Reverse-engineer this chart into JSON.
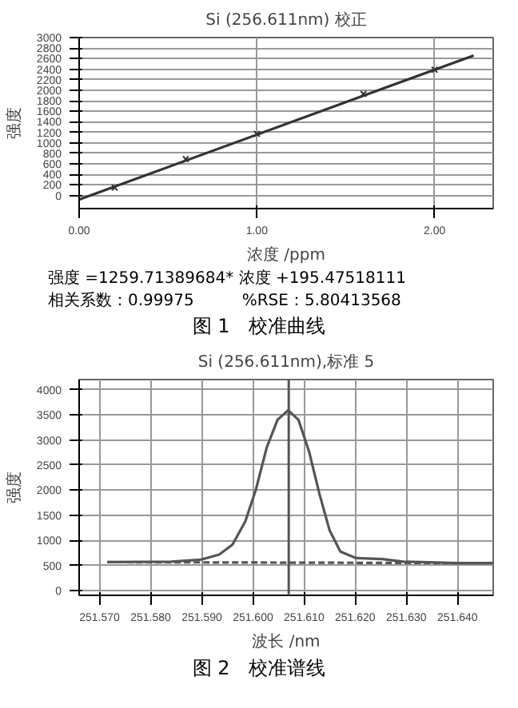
{
  "chart_data": [
    {
      "type": "scatter",
      "title": "Si (256.611nm) 校正",
      "xlabel": "浓度 /ppm",
      "ylabel": "强度",
      "xlim": [
        0,
        2.33
      ],
      "xticks": [
        {
          "value": 0,
          "label": "0.00"
        },
        {
          "value": 1,
          "label": "1.00"
        },
        {
          "value": 2,
          "label": "2.00"
        }
      ],
      "ylim": [
        -250,
        3000
      ],
      "yticks": [
        0,
        200,
        400,
        600,
        800,
        1000,
        1200,
        1400,
        1600,
        1800,
        2000,
        2200,
        2400,
        2600,
        2800,
        3000
      ],
      "grid": true,
      "series": [
        {
          "marker": "cross",
          "color": "#333333",
          "x": [
            0.2,
            0.6,
            1.0,
            1.6,
            2.0
          ],
          "values": [
            150,
            690,
            1170,
            1930,
            2390
          ]
        },
        {
          "type": "line",
          "color": "#333333",
          "x": [
            0,
            2.22
          ],
          "values": [
            -80,
            2660
          ]
        }
      ],
      "annotations": [
        "强度 =1259.71389684* 浓度 +195.47518111",
        "相关系数：0.99975　　　%RSE：5.80413568",
        "图 1　校准曲线"
      ]
    },
    {
      "type": "line",
      "title": "Si (256.611nm),标准 5",
      "xlabel": "波长 /nm",
      "ylabel": "强度",
      "xlim": [
        251.566,
        251.647
      ],
      "xticks": [
        {
          "value": 251.57,
          "label": "251.570"
        },
        {
          "value": 251.58,
          "label": "251.580"
        },
        {
          "value": 251.59,
          "label": "251.590"
        },
        {
          "value": 251.6,
          "label": "251.600"
        },
        {
          "value": 251.61,
          "label": "251.610"
        },
        {
          "value": 251.62,
          "label": "251.620"
        },
        {
          "value": 251.63,
          "label": "251.630"
        },
        {
          "value": 251.64,
          "label": "251.640"
        }
      ],
      "ylim": [
        -90,
        4200
      ],
      "yticks": [
        0,
        500,
        1000,
        1500,
        2000,
        2500,
        3000,
        3500,
        4000
      ],
      "grid": true,
      "series": [
        {
          "color": "#555555",
          "line_style": "solid",
          "x": [
            251.5715,
            251.584,
            251.5898,
            251.5934,
            251.596,
            251.5985,
            251.6006,
            251.6027,
            251.6048,
            251.6069,
            251.6089,
            251.611,
            251.613,
            251.615,
            251.6171,
            251.6202,
            251.6253,
            251.6294,
            251.64,
            251.6469
          ],
          "values": [
            570,
            580,
            620,
            720,
            920,
            1380,
            2020,
            2850,
            3400,
            3590,
            3400,
            2760,
            1930,
            1200,
            780,
            650,
            630,
            580,
            550,
            550
          ]
        },
        {
          "color": "#555555",
          "line_style": "dashed",
          "x": [
            251.5715,
            251.6469
          ],
          "values": [
            570,
            550
          ]
        }
      ],
      "ref_lines": [
        {
          "axis": "x",
          "value": 251.607,
          "color": "#555555"
        }
      ],
      "annotations": [
        "图 2　校准谱线"
      ]
    }
  ]
}
